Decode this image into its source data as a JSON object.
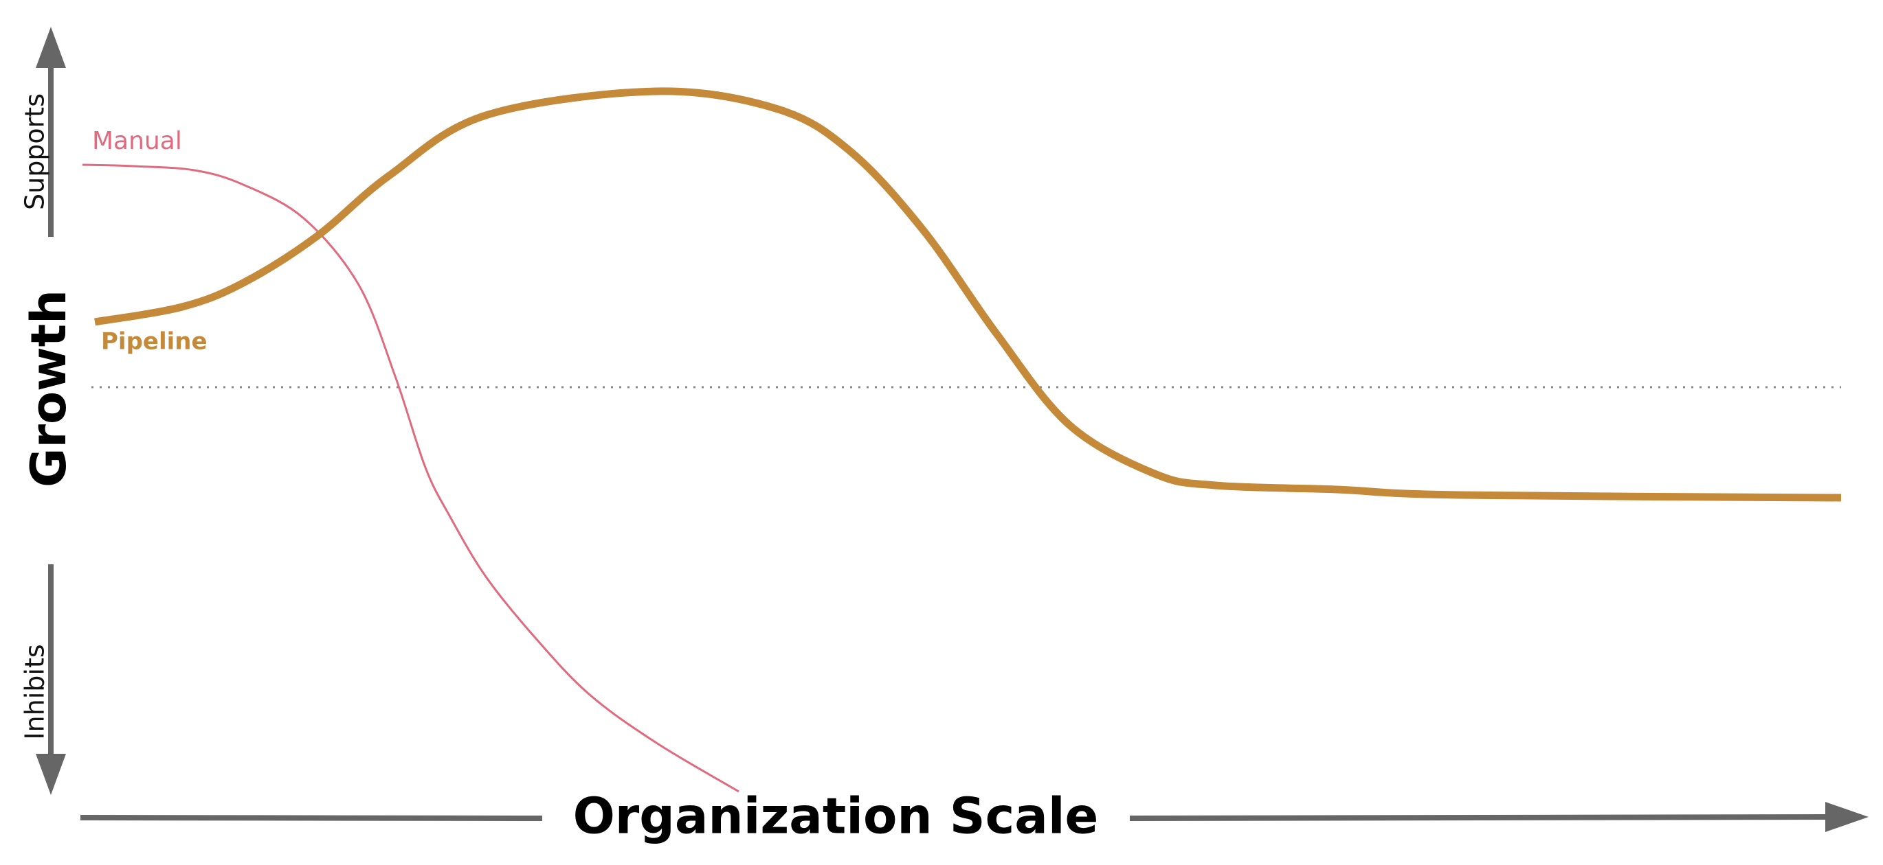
{
  "axes": {
    "y_label": "Growth",
    "y_top": "Supports",
    "y_bottom": "Inhibits",
    "x_label": "Organization Scale"
  },
  "curves": [
    {
      "label": "Manual"
    },
    {
      "label": "Pipeline"
    }
  ]
}
